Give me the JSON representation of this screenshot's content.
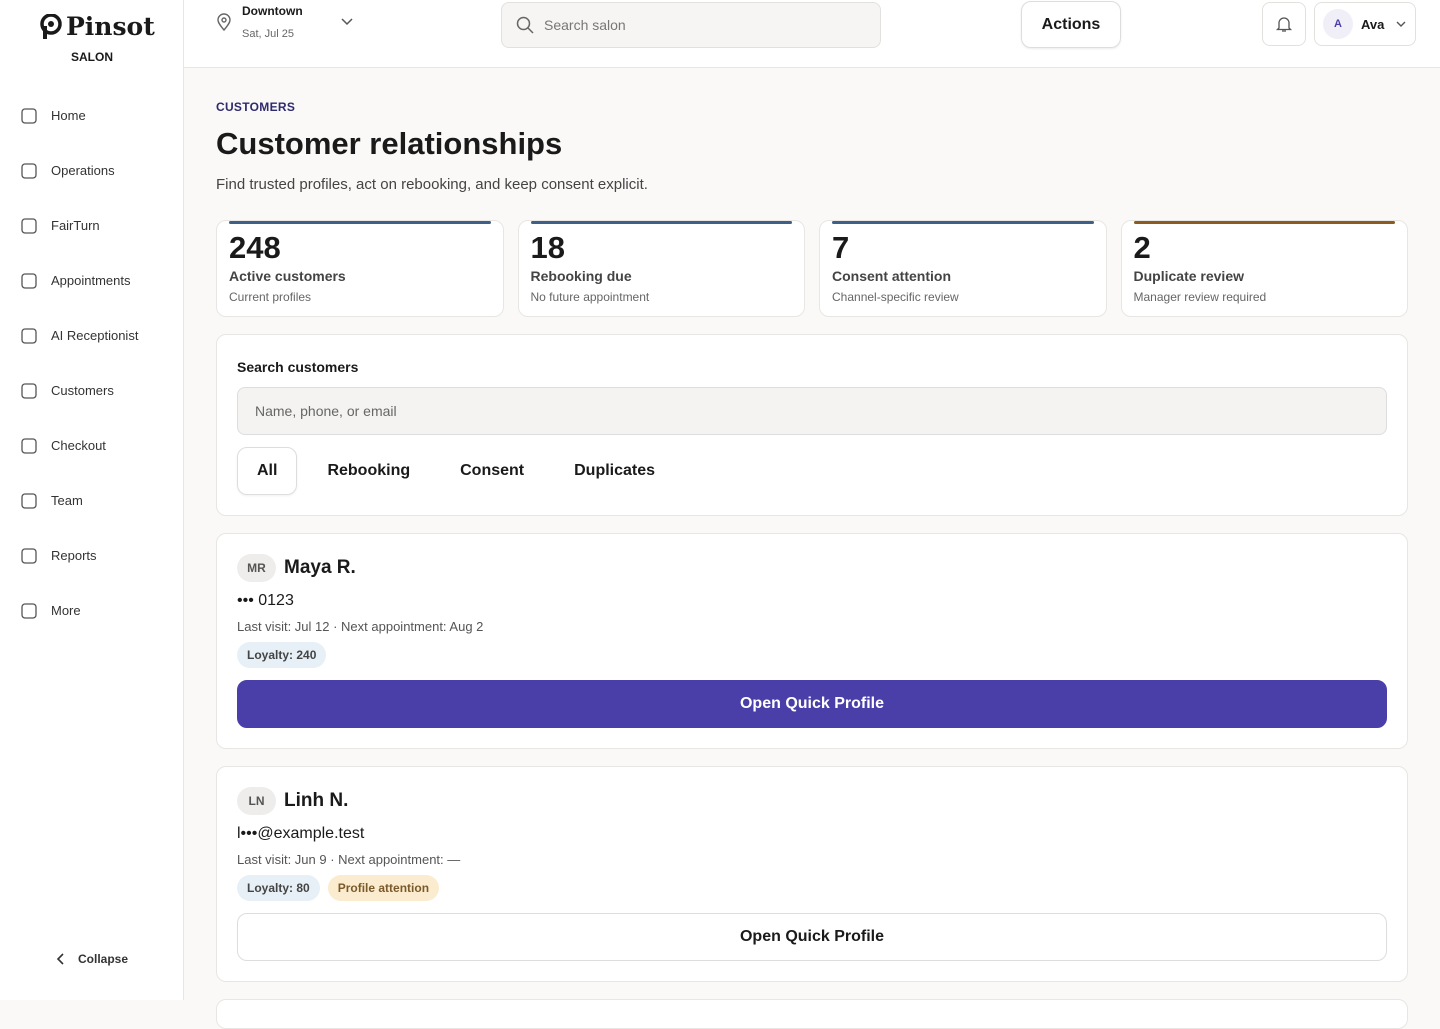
{
  "brand": {
    "name": "Pinsot",
    "sub": "SALON"
  },
  "nav": {
    "items": [
      "Home",
      "Operations",
      "FairTurn",
      "Appointments",
      "AI Receptionist",
      "Customers",
      "Checkout",
      "Team",
      "Reports",
      "More"
    ],
    "collapse": "Collapse"
  },
  "topbar": {
    "location": "Downtown",
    "date": "Sat, Jul 25",
    "search_placeholder": "Search salon",
    "actions": "Actions",
    "user_initial": "A",
    "user": "Ava"
  },
  "header": {
    "eyebrow": "CUSTOMERS",
    "title": "Customer relationships",
    "subtitle": "Find trusted profiles, act on rebooking, and keep consent explicit."
  },
  "stats": [
    {
      "value": 248,
      "label": "Active customers",
      "note": "Current profiles"
    },
    {
      "value": 18,
      "label": "Rebooking due",
      "note": "No future appointment"
    },
    {
      "value": 7,
      "label": "Consent attention",
      "note": "Channel-specific review"
    },
    {
      "value": 2,
      "label": "Duplicate review",
      "note": "Manager review required"
    }
  ],
  "search": {
    "label": "Search customers",
    "placeholder": "Name, phone, or email",
    "filters": [
      "All",
      "Rebooking",
      "Consent",
      "Duplicates"
    ]
  },
  "customers": [
    {
      "initials": "MR",
      "name": "Maya R.",
      "contact": "••• 0123",
      "visits": "Last visit: Jul 12 · Next appointment: Aug 2",
      "badges": [
        "Loyalty: 240"
      ],
      "button": "Open Quick Profile"
    },
    {
      "initials": "LN",
      "name": "Linh N.",
      "contact": "l•••@example.test",
      "visits": "Last visit: Jun 9 · Next appointment: —",
      "badges": [
        "Loyalty: 80",
        "Profile attention"
      ],
      "button": "Open Quick Profile"
    }
  ]
}
